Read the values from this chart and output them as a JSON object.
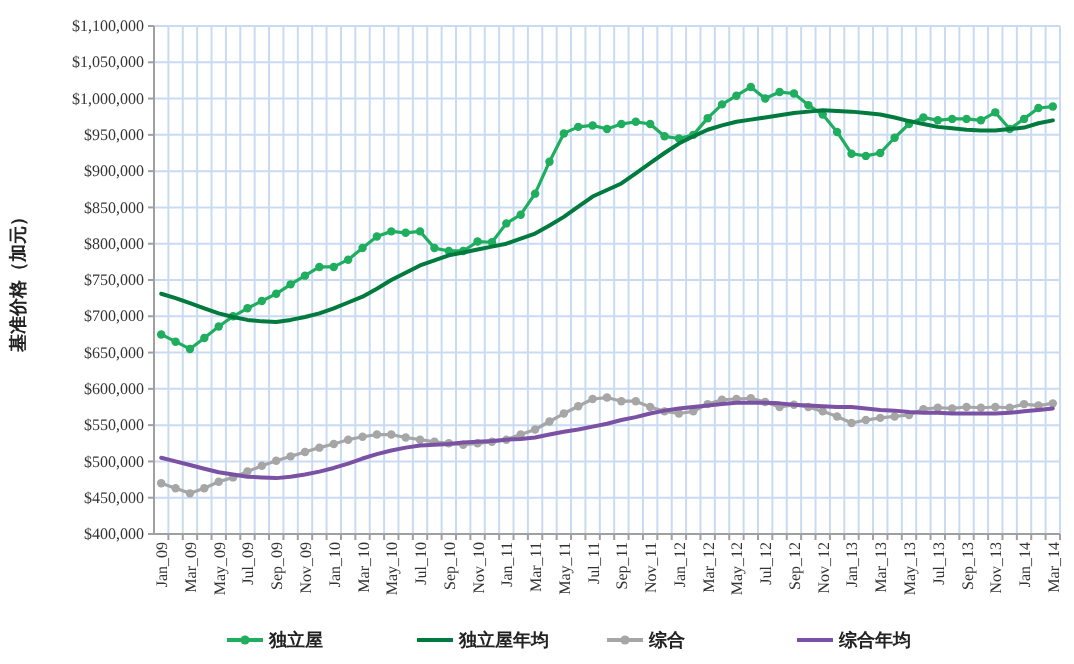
{
  "chart_data": {
    "type": "line",
    "ylabel": "基准价格（加元）",
    "categories": [
      "Jan_09",
      null,
      "Mar_09",
      null,
      "May_09",
      null,
      "Jul_09",
      null,
      "Sep_09",
      null,
      "Nov_09",
      null,
      "Jan_10",
      null,
      "Mar_10",
      null,
      "May_10",
      null,
      "Jul_10",
      null,
      "Sep_10",
      null,
      "Nov_10",
      null,
      "Jan_11",
      null,
      "Mar_11",
      null,
      "May_11",
      null,
      "Jul_11",
      null,
      "Sep_11",
      null,
      "Nov_11",
      null,
      "Jan_12",
      null,
      "Mar_12",
      null,
      "May_12",
      null,
      "Jul_12",
      null,
      "Sep_12",
      null,
      "Nov_12",
      null,
      "Jan_13",
      null,
      "Mar_13",
      null,
      "May_13",
      null,
      "Jul_13",
      null,
      "Sep_13",
      null,
      "Nov_13",
      null,
      "Jan_14",
      null,
      "Mar_14"
    ],
    "series": [
      {
        "name": "独立屋",
        "color": "#1fae5e",
        "marker": "circle",
        "values": [
          675000,
          665000,
          655000,
          670000,
          686000,
          700000,
          711000,
          721000,
          731000,
          744000,
          756000,
          768000,
          768000,
          778000,
          794000,
          810000,
          817000,
          815000,
          817000,
          794000,
          790000,
          790000,
          803000,
          802000,
          828000,
          840000,
          869000,
          913000,
          952000,
          961000,
          963000,
          958000,
          965000,
          968000,
          965000,
          948000,
          945000,
          950000,
          973000,
          992000,
          1004000,
          1016000,
          1000000,
          1009000,
          1007000,
          991000,
          978000,
          954000,
          924000,
          921000,
          925000,
          946000,
          965000,
          974000,
          970000,
          972000,
          972000,
          970000,
          981000,
          958000,
          972000,
          987000,
          989000
        ]
      },
      {
        "name": "独立屋年均",
        "color": "#007a3d",
        "marker": "none",
        "values": [
          731000,
          725000,
          718000,
          711000,
          704000,
          699000,
          695000,
          693000,
          692000,
          695000,
          699000,
          704000,
          711000,
          719000,
          727000,
          738000,
          750000,
          760000,
          770000,
          777000,
          784000,
          788000,
          792000,
          796000,
          800000,
          807000,
          814000,
          825000,
          837000,
          851000,
          865000,
          874000,
          883000,
          897000,
          911000,
          925000,
          938000,
          948000,
          957000,
          963000,
          968000,
          971000,
          974000,
          977000,
          980000,
          982000,
          984000,
          983000,
          982000,
          980000,
          978000,
          974000,
          969000,
          965000,
          961000,
          959000,
          957000,
          956000,
          956000,
          958000,
          960000,
          966000,
          970000
        ]
      },
      {
        "name": "综合",
        "color": "#a6a6a6",
        "marker": "circle",
        "values": [
          470000,
          463000,
          456000,
          463000,
          472000,
          478000,
          486000,
          494000,
          501000,
          507000,
          513000,
          519000,
          524000,
          530000,
          534000,
          537000,
          537000,
          533000,
          530000,
          527000,
          525000,
          523000,
          525000,
          527000,
          530000,
          537000,
          544000,
          555000,
          566000,
          576000,
          586000,
          588000,
          583000,
          583000,
          575000,
          569000,
          566000,
          569000,
          579000,
          585000,
          586000,
          587000,
          582000,
          575000,
          578000,
          575000,
          569000,
          562000,
          553000,
          557000,
          560000,
          562000,
          564000,
          572000,
          574000,
          573000,
          575000,
          574000,
          575000,
          574000,
          579000,
          577000,
          580000
        ]
      },
      {
        "name": "综合年均",
        "color": "#7b52a3",
        "marker": "none",
        "values": [
          505000,
          500000,
          495000,
          490000,
          485000,
          482000,
          479000,
          478000,
          477000,
          479000,
          482000,
          486000,
          491000,
          497000,
          504000,
          510000,
          515000,
          519000,
          522000,
          523000,
          524000,
          526000,
          527000,
          528000,
          530000,
          531000,
          533000,
          537000,
          541000,
          544000,
          548000,
          552000,
          557000,
          561000,
          566000,
          570000,
          573000,
          575000,
          577000,
          579000,
          581000,
          581000,
          581000,
          580000,
          578000,
          577000,
          576000,
          575000,
          575000,
          573000,
          571000,
          570000,
          568000,
          567000,
          567000,
          566000,
          566000,
          566000,
          566000,
          567000,
          569000,
          571000,
          573000
        ]
      }
    ],
    "ylim": [
      400000,
      1100000
    ],
    "yticks": [
      {
        "value": 400000,
        "label": "$400,000"
      },
      {
        "value": 450000,
        "label": "$450,000"
      },
      {
        "value": 500000,
        "label": "$500,000"
      },
      {
        "value": 550000,
        "label": "$550,000"
      },
      {
        "value": 600000,
        "label": "$600,000"
      },
      {
        "value": 650000,
        "label": "$650,000"
      },
      {
        "value": 700000,
        "label": "$700,000"
      },
      {
        "value": 750000,
        "label": "$750,000"
      },
      {
        "value": 800000,
        "label": "$800,000"
      },
      {
        "value": 850000,
        "label": "$850,000"
      },
      {
        "value": 900000,
        "label": "$900,000"
      },
      {
        "value": 950000,
        "label": "$950,000"
      },
      {
        "value": 1000000,
        "label": "$1,000,000"
      },
      {
        "value": 1050000,
        "label": "$1,050,000"
      },
      {
        "value": 1100000,
        "label": "$1,100,000"
      }
    ],
    "grid": true,
    "legend": "bottom"
  }
}
